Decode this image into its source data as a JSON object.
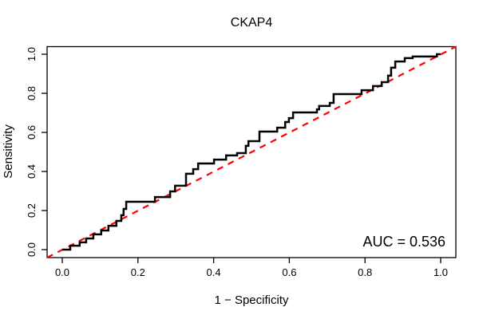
{
  "title": "CKAP4",
  "x_axis": {
    "label": "1 − Specificity",
    "tick_labels": [
      "0.0",
      "0.2",
      "0.4",
      "0.6",
      "0.8",
      "1.0"
    ]
  },
  "y_axis": {
    "label": "Sensitivity",
    "tick_labels": [
      "0.0",
      "0.2",
      "0.4",
      "0.6",
      "0.8",
      "1.0"
    ]
  },
  "annotation": {
    "auc_text": "AUC = 0.536"
  },
  "colors": {
    "curve": "#000000",
    "reference_line": "#FF0000",
    "box": "#000000",
    "text": "#000000",
    "background": "#FFFFFF"
  },
  "chart_data": {
    "type": "line",
    "subtype": "roc-step-curve",
    "title": "CKAP4",
    "xlabel": "1 − Specificity",
    "ylabel": "Sensitivity",
    "xlim": [
      0,
      1
    ],
    "ylim": [
      0,
      1
    ],
    "x_ticks": [
      0,
      0.2,
      0.4,
      0.6,
      0.8,
      1.0
    ],
    "y_ticks": [
      0,
      0.2,
      0.4,
      0.6,
      0.8,
      1.0
    ],
    "grid": false,
    "legend": "none",
    "auc": 0.536,
    "series": [
      {
        "name": "ROC curve (CKAP4)",
        "style": "step-solid",
        "color": "#000000",
        "points": [
          [
            0.0,
            0.0
          ],
          [
            0.021,
            0.0
          ],
          [
            0.021,
            0.02
          ],
          [
            0.046,
            0.02
          ],
          [
            0.046,
            0.037
          ],
          [
            0.063,
            0.037
          ],
          [
            0.063,
            0.057
          ],
          [
            0.082,
            0.057
          ],
          [
            0.082,
            0.078
          ],
          [
            0.103,
            0.078
          ],
          [
            0.103,
            0.098
          ],
          [
            0.122,
            0.098
          ],
          [
            0.122,
            0.122
          ],
          [
            0.143,
            0.122
          ],
          [
            0.143,
            0.147
          ],
          [
            0.156,
            0.147
          ],
          [
            0.156,
            0.176
          ],
          [
            0.162,
            0.176
          ],
          [
            0.162,
            0.208
          ],
          [
            0.169,
            0.208
          ],
          [
            0.169,
            0.245
          ],
          [
            0.245,
            0.245
          ],
          [
            0.245,
            0.269
          ],
          [
            0.285,
            0.269
          ],
          [
            0.285,
            0.298
          ],
          [
            0.298,
            0.298
          ],
          [
            0.298,
            0.327
          ],
          [
            0.327,
            0.327
          ],
          [
            0.327,
            0.388
          ],
          [
            0.346,
            0.388
          ],
          [
            0.346,
            0.412
          ],
          [
            0.359,
            0.412
          ],
          [
            0.359,
            0.441
          ],
          [
            0.401,
            0.441
          ],
          [
            0.401,
            0.461
          ],
          [
            0.433,
            0.461
          ],
          [
            0.433,
            0.482
          ],
          [
            0.462,
            0.482
          ],
          [
            0.462,
            0.494
          ],
          [
            0.485,
            0.494
          ],
          [
            0.485,
            0.531
          ],
          [
            0.492,
            0.531
          ],
          [
            0.492,
            0.555
          ],
          [
            0.521,
            0.555
          ],
          [
            0.521,
            0.604
          ],
          [
            0.568,
            0.604
          ],
          [
            0.568,
            0.624
          ],
          [
            0.589,
            0.624
          ],
          [
            0.589,
            0.653
          ],
          [
            0.599,
            0.653
          ],
          [
            0.599,
            0.673
          ],
          [
            0.61,
            0.673
          ],
          [
            0.61,
            0.702
          ],
          [
            0.673,
            0.702
          ],
          [
            0.673,
            0.718
          ],
          [
            0.679,
            0.718
          ],
          [
            0.679,
            0.735
          ],
          [
            0.707,
            0.735
          ],
          [
            0.707,
            0.751
          ],
          [
            0.717,
            0.751
          ],
          [
            0.717,
            0.796
          ],
          [
            0.791,
            0.796
          ],
          [
            0.791,
            0.816
          ],
          [
            0.821,
            0.816
          ],
          [
            0.821,
            0.837
          ],
          [
            0.844,
            0.837
          ],
          [
            0.844,
            0.857
          ],
          [
            0.861,
            0.857
          ],
          [
            0.861,
            0.89
          ],
          [
            0.869,
            0.89
          ],
          [
            0.869,
            0.931
          ],
          [
            0.88,
            0.931
          ],
          [
            0.88,
            0.963
          ],
          [
            0.905,
            0.963
          ],
          [
            0.905,
            0.98
          ],
          [
            0.926,
            0.98
          ],
          [
            0.926,
            0.988
          ],
          [
            0.99,
            0.988
          ],
          [
            0.99,
            1.0
          ],
          [
            1.0,
            1.0
          ]
        ]
      },
      {
        "name": "chance reference diagonal",
        "style": "dashed",
        "color": "#FF0000",
        "points": [
          [
            0,
            0
          ],
          [
            1,
            1
          ]
        ]
      }
    ]
  }
}
